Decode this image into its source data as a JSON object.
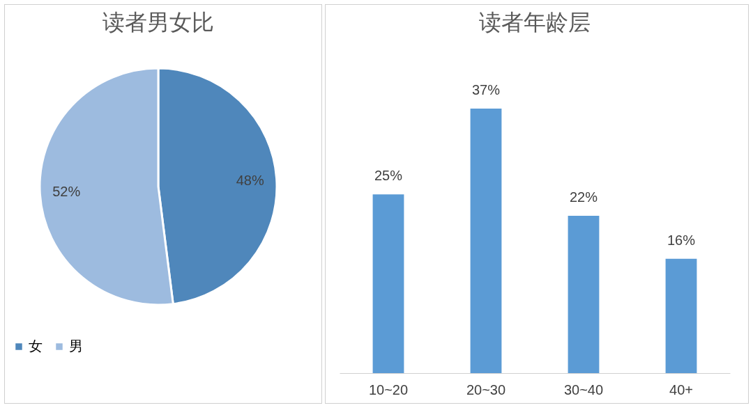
{
  "chart_data": [
    {
      "type": "pie",
      "title": "读者男女比",
      "categories": [
        "女",
        "男"
      ],
      "values": [
        48,
        52
      ],
      "colors": [
        "#4f87bb",
        "#9dbbdf"
      ],
      "value_labels": [
        "48%",
        "52%"
      ],
      "legend": "bottom"
    },
    {
      "type": "bar",
      "title": "读者年龄层",
      "categories": [
        "10~20",
        "20~30",
        "30~40",
        "40+"
      ],
      "values": [
        25,
        37,
        22,
        16
      ],
      "color": "#5b9bd5",
      "value_labels": [
        "25%",
        "37%",
        "22%",
        "16%"
      ]
    }
  ]
}
